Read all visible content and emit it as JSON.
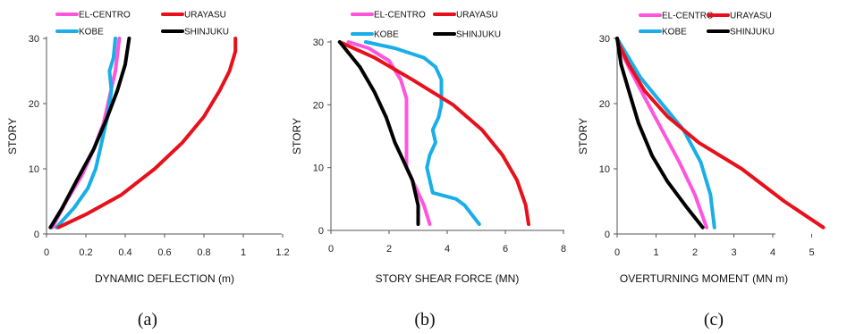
{
  "chart_data": [
    {
      "type": "line",
      "panel_label": "(a)",
      "xlabel": "DYNAMIC  DEFLECTION  (m)",
      "ylabel": "STORY",
      "xlim": [
        0,
        1.2
      ],
      "ylim": [
        0,
        30
      ],
      "x_ticks": [
        "0",
        "0.2",
        "0.4",
        "0.6",
        "0.8",
        "1",
        "1.2"
      ],
      "y_ticks": [
        "0",
        "10",
        "20",
        "30"
      ],
      "grid": false,
      "legend": "top",
      "series": [
        {
          "name": "EL-CENTRO",
          "color": "#ff55dd",
          "points": [
            [
              0.03,
              1
            ],
            [
              0.1,
              5
            ],
            [
              0.18,
              9
            ],
            [
              0.24,
              13
            ],
            [
              0.29,
              17
            ],
            [
              0.32,
              21
            ],
            [
              0.35,
              25
            ],
            [
              0.37,
              30
            ]
          ]
        },
        {
          "name": "KOBE",
          "color": "#1aaee8",
          "points": [
            [
              0.05,
              1
            ],
            [
              0.14,
              4
            ],
            [
              0.21,
              7
            ],
            [
              0.25,
              10
            ],
            [
              0.28,
              14
            ],
            [
              0.31,
              18
            ],
            [
              0.33,
              22
            ],
            [
              0.32,
              25
            ],
            [
              0.34,
              27
            ],
            [
              0.35,
              30
            ]
          ]
        },
        {
          "name": "URAYASU",
          "color": "#e8101a",
          "points": [
            [
              0.06,
              1
            ],
            [
              0.2,
              3
            ],
            [
              0.38,
              6
            ],
            [
              0.55,
              10
            ],
            [
              0.69,
              14
            ],
            [
              0.8,
              18
            ],
            [
              0.88,
              22
            ],
            [
              0.93,
              25
            ],
            [
              0.96,
              28
            ],
            [
              0.96,
              30
            ]
          ]
        },
        {
          "name": "SHINJUKU",
          "color": "#000000",
          "points": [
            [
              0.02,
              1
            ],
            [
              0.08,
              4
            ],
            [
              0.15,
              8
            ],
            [
              0.24,
              13
            ],
            [
              0.31,
              18
            ],
            [
              0.36,
              22
            ],
            [
              0.4,
              26
            ],
            [
              0.42,
              30
            ]
          ]
        }
      ]
    },
    {
      "type": "line",
      "panel_label": "(b)",
      "xlabel": "STORY  SHEAR  FORCE  (MN)",
      "ylabel": "STORY",
      "xlim": [
        0,
        8
      ],
      "ylim": [
        0,
        30
      ],
      "x_ticks": [
        "0",
        "2",
        "4",
        "6",
        "8"
      ],
      "y_ticks": [
        "0",
        "10",
        "20",
        "30"
      ],
      "grid": false,
      "legend": "top",
      "series": [
        {
          "name": "EL-CENTRO",
          "color": "#ff55dd",
          "points": [
            [
              3.4,
              1
            ],
            [
              3.2,
              4
            ],
            [
              2.9,
              7
            ],
            [
              2.6,
              10
            ],
            [
              2.6,
              14
            ],
            [
              2.6,
              18
            ],
            [
              2.6,
              21
            ],
            [
              2.4,
              24
            ],
            [
              2.0,
              27
            ],
            [
              1.3,
              29
            ],
            [
              0.6,
              30
            ]
          ]
        },
        {
          "name": "KOBE",
          "color": "#1aaee8",
          "points": [
            [
              5.1,
              1
            ],
            [
              4.6,
              4
            ],
            [
              4.3,
              5
            ],
            [
              3.5,
              6
            ],
            [
              3.4,
              8
            ],
            [
              3.3,
              10
            ],
            [
              3.4,
              12
            ],
            [
              3.6,
              14
            ],
            [
              3.5,
              16
            ],
            [
              3.7,
              18
            ],
            [
              3.8,
              20
            ],
            [
              3.8,
              22
            ],
            [
              3.8,
              24
            ],
            [
              3.6,
              26
            ],
            [
              3.2,
              27.5
            ],
            [
              2.2,
              29
            ],
            [
              1.2,
              30
            ]
          ]
        },
        {
          "name": "URAYASU",
          "color": "#e8101a",
          "points": [
            [
              6.8,
              1
            ],
            [
              6.7,
              4
            ],
            [
              6.4,
              8
            ],
            [
              5.9,
              12
            ],
            [
              5.2,
              16
            ],
            [
              4.2,
              20
            ],
            [
              2.8,
              24
            ],
            [
              1.5,
              27.5
            ],
            [
              0.3,
              30
            ]
          ]
        },
        {
          "name": "SHINJUKU",
          "color": "#000000",
          "points": [
            [
              3.0,
              1
            ],
            [
              3.0,
              4
            ],
            [
              2.8,
              8
            ],
            [
              2.5,
              11
            ],
            [
              2.2,
              14
            ],
            [
              1.9,
              18
            ],
            [
              1.5,
              22
            ],
            [
              1.0,
              26
            ],
            [
              0.3,
              30
            ]
          ]
        }
      ]
    },
    {
      "type": "line",
      "panel_label": "(c)",
      "xlabel": "OVERTURNING  MOMENT  (MN m)",
      "ylabel": "STORY",
      "xlim": [
        0,
        6
      ],
      "ylim": [
        0,
        30
      ],
      "x_ticks": [
        "0",
        "1",
        "2",
        "3",
        "4",
        "5"
      ],
      "y_ticks": [
        "0",
        "10",
        "20",
        "30"
      ],
      "grid": false,
      "legend": "top",
      "series": [
        {
          "name": "EL-CENTRO",
          "color": "#ff55dd",
          "points": [
            [
              2.3,
              1
            ],
            [
              2.0,
              6
            ],
            [
              1.6,
              11
            ],
            [
              1.15,
              16
            ],
            [
              0.7,
              21
            ],
            [
              0.35,
              25
            ],
            [
              0.1,
              28
            ],
            [
              0.0,
              30
            ]
          ]
        },
        {
          "name": "KOBE",
          "color": "#1aaee8",
          "points": [
            [
              2.5,
              1
            ],
            [
              2.4,
              6
            ],
            [
              2.15,
              11
            ],
            [
              1.7,
              16
            ],
            [
              1.15,
              20
            ],
            [
              0.6,
              24
            ],
            [
              0.2,
              28
            ],
            [
              0.0,
              30
            ]
          ]
        },
        {
          "name": "URAYASU",
          "color": "#e8101a",
          "points": [
            [
              5.3,
              1
            ],
            [
              4.3,
              5
            ],
            [
              3.2,
              10
            ],
            [
              2.1,
              14
            ],
            [
              1.3,
              18
            ],
            [
              0.7,
              22
            ],
            [
              0.3,
              26
            ],
            [
              0.05,
              29
            ],
            [
              0.0,
              30
            ]
          ]
        },
        {
          "name": "SHINJUKU",
          "color": "#000000",
          "points": [
            [
              2.2,
              1
            ],
            [
              1.8,
              4
            ],
            [
              1.3,
              8
            ],
            [
              0.9,
              12
            ],
            [
              0.55,
              17
            ],
            [
              0.3,
              22
            ],
            [
              0.1,
              26
            ],
            [
              0.0,
              30
            ]
          ]
        }
      ]
    }
  ]
}
